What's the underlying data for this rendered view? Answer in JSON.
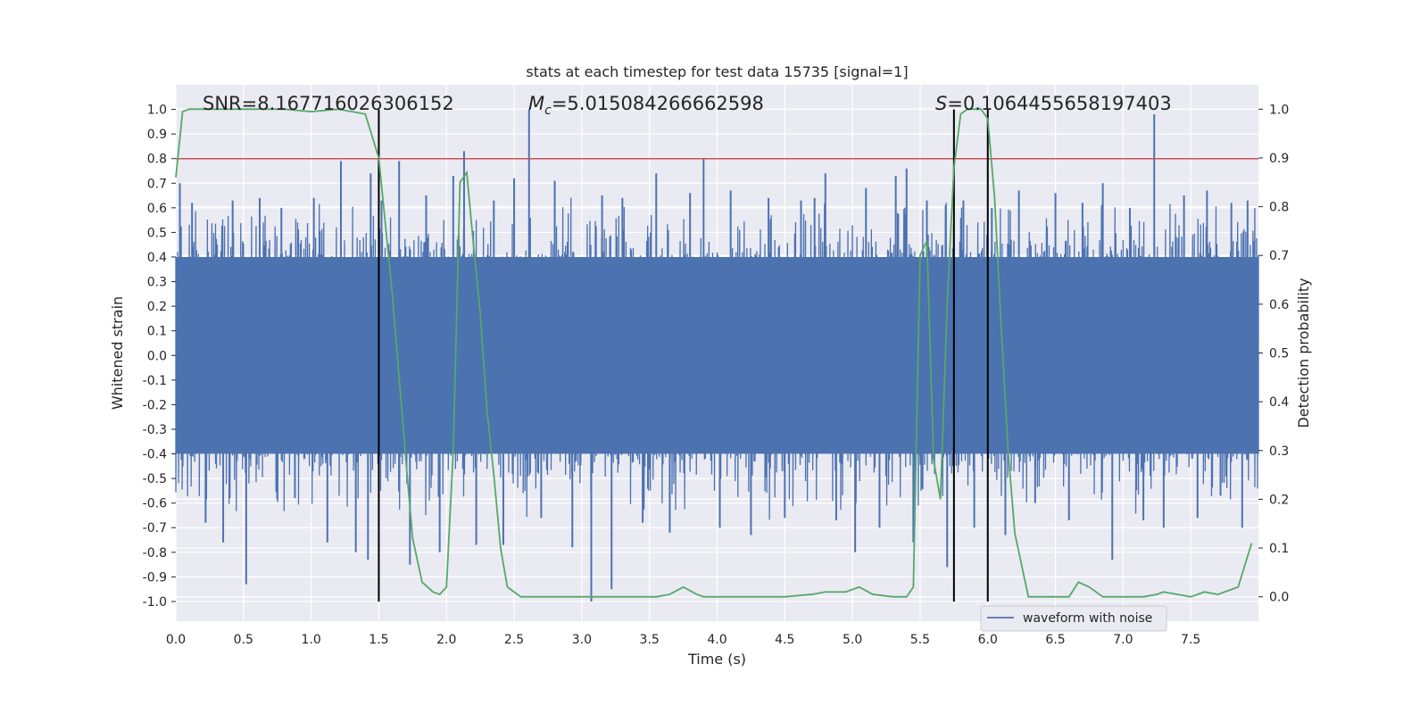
{
  "chart_data": {
    "type": "line",
    "title": "stats at each timestep for test data 15735 [signal=1]",
    "xlabel": "Time (s)",
    "ylabel": "Whitened strain",
    "ylabel_right": "Detection probability",
    "xlim": [
      0.0,
      8.0
    ],
    "ylim": [
      -1.08,
      1.1
    ],
    "ylim_right": [
      -0.05,
      1.05
    ],
    "xticks": [
      "0.0",
      "0.5",
      "1.0",
      "1.5",
      "2.0",
      "2.5",
      "3.0",
      "3.5",
      "4.0",
      "4.5",
      "5.0",
      "5.5",
      "6.0",
      "6.5",
      "7.0",
      "7.5"
    ],
    "yticks": [
      "1.0",
      "0.9",
      "0.8",
      "0.7",
      "0.6",
      "0.5",
      "0.4",
      "0.3",
      "0.2",
      "0.1",
      "0.0",
      "-0.1",
      "-0.2",
      "-0.3",
      "-0.4",
      "-0.5",
      "-0.6",
      "-0.7",
      "-0.8",
      "-0.9",
      "-1.0"
    ],
    "yticks_right": [
      "1.0",
      "0.9",
      "0.8",
      "0.7",
      "0.6",
      "0.5",
      "0.4",
      "0.3",
      "0.2",
      "0.1",
      "0.0"
    ],
    "grid": true,
    "annotations": {
      "snr": "SNR=8.167716026306152",
      "mc_symbol": "M",
      "mc_sub": "c",
      "mc_value": "=5.015084266662598",
      "s_symbol": "S",
      "s_value": "=0.1064455658197403"
    },
    "threshold": {
      "value": 0.8,
      "color": "#c44e52"
    },
    "vertical_lines": [
      1.5,
      5.75,
      6.0
    ],
    "series": [
      {
        "name": "waveform with noise",
        "color": "#4c72b0",
        "axis": "left",
        "style": "dense-noise",
        "core_amplitude": 0.4,
        "spikes": [
          {
            "x": 0.03,
            "y": 0.7
          },
          {
            "x": 0.05,
            "y": -0.45
          },
          {
            "x": 0.12,
            "y": 0.62
          },
          {
            "x": 0.22,
            "y": -0.68
          },
          {
            "x": 0.35,
            "y": -0.76
          },
          {
            "x": 0.42,
            "y": 0.63
          },
          {
            "x": 0.52,
            "y": -0.93
          },
          {
            "x": 0.62,
            "y": 0.64
          },
          {
            "x": 0.78,
            "y": 0.6
          },
          {
            "x": 0.88,
            "y": -0.58
          },
          {
            "x": 1.02,
            "y": 0.64
          },
          {
            "x": 1.12,
            "y": -0.76
          },
          {
            "x": 1.22,
            "y": 0.79
          },
          {
            "x": 1.33,
            "y": -0.8
          },
          {
            "x": 1.42,
            "y": -0.83
          },
          {
            "x": 1.44,
            "y": 0.74
          },
          {
            "x": 1.52,
            "y": 0.63
          },
          {
            "x": 1.65,
            "y": 0.79
          },
          {
            "x": 1.73,
            "y": -0.85
          },
          {
            "x": 1.85,
            "y": 0.65
          },
          {
            "x": 1.95,
            "y": -0.8
          },
          {
            "x": 2.05,
            "y": 0.73
          },
          {
            "x": 2.13,
            "y": 0.83
          },
          {
            "x": 2.22,
            "y": -0.77
          },
          {
            "x": 2.35,
            "y": 0.63
          },
          {
            "x": 2.42,
            "y": -0.77
          },
          {
            "x": 2.5,
            "y": 0.72
          },
          {
            "x": 2.61,
            "y": 1.0
          },
          {
            "x": 2.7,
            "y": -0.66
          },
          {
            "x": 2.8,
            "y": 0.71
          },
          {
            "x": 2.93,
            "y": -0.78
          },
          {
            "x": 3.07,
            "y": -1.0
          },
          {
            "x": 3.15,
            "y": 0.65
          },
          {
            "x": 3.22,
            "y": -0.95
          },
          {
            "x": 3.3,
            "y": 0.64
          },
          {
            "x": 3.45,
            "y": -0.68
          },
          {
            "x": 3.55,
            "y": 0.74
          },
          {
            "x": 3.65,
            "y": -0.72
          },
          {
            "x": 3.8,
            "y": 0.66
          },
          {
            "x": 3.9,
            "y": 0.8
          },
          {
            "x": 4.02,
            "y": -0.7
          },
          {
            "x": 4.1,
            "y": 0.67
          },
          {
            "x": 4.25,
            "y": -0.73
          },
          {
            "x": 4.38,
            "y": 0.64
          },
          {
            "x": 4.5,
            "y": -0.66
          },
          {
            "x": 4.62,
            "y": 0.63
          },
          {
            "x": 4.72,
            "y": 0.64
          },
          {
            "x": 4.8,
            "y": 0.74
          },
          {
            "x": 4.88,
            "y": -0.67
          },
          {
            "x": 5.02,
            "y": -0.8
          },
          {
            "x": 5.1,
            "y": 0.68
          },
          {
            "x": 5.2,
            "y": -0.7
          },
          {
            "x": 5.32,
            "y": 0.73
          },
          {
            "x": 5.4,
            "y": 0.76
          },
          {
            "x": 5.45,
            "y": -0.76
          },
          {
            "x": 5.55,
            "y": 0.63
          },
          {
            "x": 5.7,
            "y": -0.86
          },
          {
            "x": 5.82,
            "y": 0.63
          },
          {
            "x": 5.9,
            "y": -0.7
          },
          {
            "x": 6.03,
            "y": 0.6
          },
          {
            "x": 6.13,
            "y": -0.73
          },
          {
            "x": 6.23,
            "y": 0.67
          },
          {
            "x": 6.35,
            "y": -0.6
          },
          {
            "x": 6.5,
            "y": 0.66
          },
          {
            "x": 6.6,
            "y": -0.67
          },
          {
            "x": 6.7,
            "y": 0.62
          },
          {
            "x": 6.85,
            "y": 0.7
          },
          {
            "x": 6.92,
            "y": -0.83
          },
          {
            "x": 7.05,
            "y": 0.6
          },
          {
            "x": 7.15,
            "y": -0.67
          },
          {
            "x": 7.23,
            "y": 0.98
          },
          {
            "x": 7.3,
            "y": -0.7
          },
          {
            "x": 7.45,
            "y": 0.65
          },
          {
            "x": 7.55,
            "y": -0.66
          },
          {
            "x": 7.62,
            "y": 0.67
          },
          {
            "x": 7.72,
            "y": -0.57
          },
          {
            "x": 7.8,
            "y": 0.62
          },
          {
            "x": 7.88,
            "y": -0.7
          },
          {
            "x": 7.92,
            "y": 0.63
          }
        ]
      },
      {
        "name": "detection probability",
        "color": "#55a868",
        "axis": "right",
        "x": [
          0.0,
          0.05,
          0.1,
          0.2,
          0.4,
          0.6,
          0.8,
          1.0,
          1.2,
          1.3,
          1.4,
          1.5,
          1.6,
          1.7,
          1.75,
          1.82,
          1.9,
          1.95,
          2.0,
          2.05,
          2.1,
          2.15,
          2.2,
          2.25,
          2.3,
          2.35,
          2.4,
          2.45,
          2.55,
          2.7,
          3.0,
          3.3,
          3.55,
          3.65,
          3.75,
          3.85,
          3.9,
          4.0,
          4.2,
          4.5,
          4.7,
          4.8,
          4.95,
          5.05,
          5.15,
          5.3,
          5.4,
          5.45,
          5.5,
          5.55,
          5.6,
          5.65,
          5.7,
          5.75,
          5.8,
          5.85,
          5.9,
          5.95,
          6.0,
          6.05,
          6.1,
          6.15,
          6.2,
          6.3,
          6.35,
          6.5,
          6.6,
          6.67,
          6.75,
          6.85,
          7.0,
          7.15,
          7.25,
          7.3,
          7.4,
          7.5,
          7.6,
          7.7,
          7.85,
          7.95
        ],
        "values": [
          0.86,
          0.995,
          1.0,
          1.0,
          1.0,
          1.0,
          1.0,
          0.995,
          1.0,
          0.995,
          0.99,
          0.9,
          0.62,
          0.28,
          0.12,
          0.03,
          0.01,
          0.005,
          0.02,
          0.3,
          0.85,
          0.87,
          0.72,
          0.58,
          0.38,
          0.25,
          0.1,
          0.02,
          0.0,
          0.0,
          0.0,
          0.0,
          0.0,
          0.005,
          0.02,
          0.005,
          0.0,
          0.0,
          0.0,
          0.0,
          0.005,
          0.01,
          0.01,
          0.02,
          0.005,
          0.0,
          0.0,
          0.02,
          0.7,
          0.73,
          0.28,
          0.2,
          0.6,
          0.88,
          0.99,
          1.0,
          1.0,
          1.0,
          0.98,
          0.82,
          0.55,
          0.3,
          0.13,
          0.0,
          0.0,
          0.0,
          0.0,
          0.03,
          0.02,
          0.0,
          0.0,
          0.0,
          0.005,
          0.01,
          0.005,
          0.0,
          0.01,
          0.005,
          0.02,
          0.11
        ]
      }
    ],
    "legend": {
      "placement": "lower-right",
      "entries": [
        "waveform with noise"
      ]
    }
  }
}
